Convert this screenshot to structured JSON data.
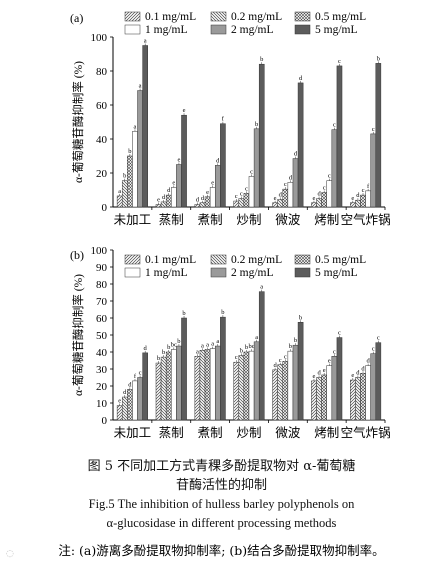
{
  "chart_data": [
    {
      "type": "bar",
      "panel": "(a)",
      "ylabel": "α-葡萄糖苷酶抑制率 (%)",
      "ylim": [
        0,
        100
      ],
      "yticks": [
        0,
        20,
        40,
        60,
        80,
        100
      ],
      "categories": [
        "未加工",
        "蒸制",
        "煮制",
        "炒制",
        "微波",
        "烤制",
        "空气炸锅"
      ],
      "legend_placement": "top-right",
      "series": [
        {
          "name": "0.1 mg/mL",
          "pattern": "hatch-diag-fwd",
          "values": [
            6.5,
            1.5,
            1.5,
            3.5,
            2.5,
            2.5,
            2.5
          ],
          "labels": [
            "a",
            "e",
            "d",
            "c",
            "e",
            "e",
            "e"
          ]
        },
        {
          "name": "0.2 mg/mL",
          "pattern": "hatch-diag-back",
          "values": [
            15.5,
            3,
            2.5,
            5,
            4.5,
            5,
            4
          ],
          "labels": [
            "b",
            "d",
            "d",
            "c",
            "d",
            "d",
            "d"
          ]
        },
        {
          "name": "0.5 mg/mL",
          "pattern": "crosshatch",
          "values": [
            30,
            7,
            6,
            8,
            10.5,
            8.5,
            7
          ],
          "labels": [
            "b",
            "d",
            "e",
            "c",
            "c",
            "c",
            "c"
          ]
        },
        {
          "name": "1 mg/mL",
          "pattern": "white",
          "values": [
            44.5,
            11.5,
            11.5,
            18,
            14.5,
            15.5,
            9.5
          ],
          "labels": [
            "a",
            "e",
            "e",
            "c",
            "d",
            "c",
            "f"
          ]
        },
        {
          "name": "2 mg/mL",
          "pattern": "lightgray",
          "values": [
            68.5,
            25,
            24.5,
            46,
            28.5,
            45.5,
            43
          ],
          "labels": [
            "a",
            "e",
            "d",
            "b",
            "d",
            "c",
            "c"
          ]
        },
        {
          "name": "5 mg/mL",
          "pattern": "darkgray",
          "values": [
            95,
            54,
            49,
            84,
            73,
            83,
            84.5
          ],
          "labels": [
            "a",
            "e",
            "f",
            "b",
            "d",
            "c",
            "b"
          ]
        }
      ]
    },
    {
      "type": "bar",
      "panel": "(b)",
      "ylabel": "α-葡萄糖苷酶抑制率 (%)",
      "ylim": [
        0,
        100
      ],
      "yticks": [
        0,
        10,
        20,
        30,
        40,
        50,
        60,
        70,
        80,
        90,
        100
      ],
      "categories": [
        "未加工",
        "蒸制",
        "煮制",
        "炒制",
        "微波",
        "烤制",
        "空气炸锅"
      ],
      "legend_placement": "top-right",
      "series": [
        {
          "name": "0.1 mg/mL",
          "pattern": "hatch-diag-fwd",
          "values": [
            8.5,
            33.5,
            37.5,
            34,
            29.5,
            23,
            23.5
          ],
          "labels": [
            "e",
            "b",
            "a",
            "c",
            "d",
            "e",
            "e"
          ]
        },
        {
          "name": "0.2 mg/mL",
          "pattern": "hatch-diag-back",
          "values": [
            13.5,
            37,
            41,
            38,
            32.5,
            25,
            25
          ],
          "labels": [
            "d",
            "b",
            "a",
            "b",
            "c",
            "d",
            "d"
          ]
        },
        {
          "name": "0.5 mg/mL",
          "pattern": "crosshatch",
          "values": [
            18,
            40,
            41.5,
            40,
            34.5,
            26.5,
            27.5
          ],
          "labels": [
            "d",
            "b",
            "a",
            "b",
            "c",
            "e",
            "d"
          ]
        },
        {
          "name": "1 mg/mL",
          "pattern": "white",
          "values": [
            23,
            41.5,
            42,
            40.5,
            40.5,
            32,
            32
          ],
          "labels": [
            "f",
            "bc",
            "a",
            "bc",
            "b",
            "e",
            "d"
          ]
        },
        {
          "name": "2 mg/mL",
          "pattern": "lightgray",
          "values": [
            25,
            43.5,
            43.5,
            46,
            44,
            37.5,
            39
          ],
          "labels": [
            "c",
            "b",
            "a",
            "a",
            "b",
            "c",
            "c"
          ]
        },
        {
          "name": "5 mg/mL",
          "pattern": "darkgray",
          "values": [
            39.5,
            60,
            60.5,
            75.5,
            57.5,
            48.5,
            45.5
          ],
          "labels": [
            "d",
            "b",
            "b",
            "a",
            "b",
            "c",
            "c"
          ]
        }
      ]
    }
  ],
  "caption": {
    "cn_line1": "图 5   不同加工方式青稞多酚提取物对 α-葡萄糖",
    "cn_line2": "苷酶活性的抑制",
    "en_line1": "Fig.5   The inhibition of hulless barley polyphenols on",
    "en_line2": "α-glucosidase in different processing methods",
    "note": "注: (a)游离多酚提取物抑制率; (b)结合多酚提取物抑制率。"
  },
  "colors": {
    "axis": "#000000",
    "bar_stroke": "#333333",
    "white_fill": "#ffffff",
    "lightgray_fill": "#9a9a9a",
    "darkgray_fill": "#5c5c5c",
    "hatch_color": "#444444"
  }
}
